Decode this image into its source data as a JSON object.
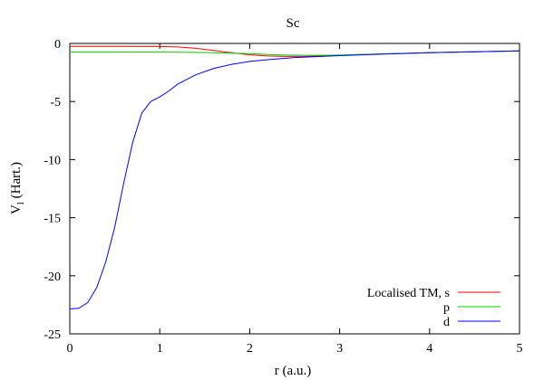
{
  "chart_data": {
    "type": "line",
    "title": "Sc",
    "xlabel": "r (a.u.)",
    "ylabel_main": "V",
    "ylabel_sub": "l",
    "ylabel_rest": " (Hart.)",
    "xlim": [
      0,
      5
    ],
    "ylim": [
      -25,
      0
    ],
    "x_ticks": [
      0,
      1,
      2,
      3,
      4,
      5
    ],
    "y_ticks": [
      0,
      -5,
      -10,
      -15,
      -20,
      -25
    ],
    "x_tick_labels": [
      "0",
      "1",
      "2",
      "3",
      "4",
      "5"
    ],
    "y_tick_labels": [
      "0",
      "-5",
      "-10",
      "-15",
      "-20",
      "-25"
    ],
    "grid": false,
    "legend_position": "bottom-right",
    "series": [
      {
        "name": "Localised TM, s",
        "color": "#ff0000",
        "x": [
          0,
          0.5,
          1.0,
          1.2,
          1.4,
          1.6,
          1.8,
          2.0,
          2.2,
          2.4,
          2.6,
          2.8,
          3.0,
          3.5,
          4.0,
          4.5,
          5.0
        ],
        "y": [
          -0.25,
          -0.25,
          -0.26,
          -0.3,
          -0.42,
          -0.6,
          -0.8,
          -0.98,
          -1.08,
          -1.12,
          -1.12,
          -1.08,
          -1.02,
          -0.9,
          -0.8,
          -0.72,
          -0.64
        ]
      },
      {
        "name": "p",
        "color": "#00cc00",
        "x": [
          0,
          0.5,
          1.0,
          1.5,
          2.0,
          2.2,
          2.4,
          2.6,
          2.8,
          3.0,
          3.5,
          4.0,
          4.5,
          5.0
        ],
        "y": [
          -0.75,
          -0.75,
          -0.75,
          -0.78,
          -0.88,
          -0.95,
          -1.0,
          -1.02,
          -1.02,
          -1.0,
          -0.9,
          -0.8,
          -0.72,
          -0.64
        ]
      },
      {
        "name": "d",
        "color": "#0000ff",
        "x": [
          0,
          0.1,
          0.2,
          0.3,
          0.4,
          0.5,
          0.6,
          0.7,
          0.8,
          0.9,
          1.0,
          1.1,
          1.2,
          1.4,
          1.6,
          1.8,
          2.0,
          2.2,
          2.5,
          3.0,
          3.5,
          4.0,
          4.5,
          5.0
        ],
        "y": [
          -22.85,
          -22.8,
          -22.3,
          -21.0,
          -18.8,
          -15.8,
          -12.0,
          -8.5,
          -6.0,
          -5.0,
          -4.6,
          -4.1,
          -3.5,
          -2.7,
          -2.15,
          -1.8,
          -1.55,
          -1.4,
          -1.22,
          -1.05,
          -0.92,
          -0.8,
          -0.72,
          -0.64
        ]
      }
    ]
  }
}
